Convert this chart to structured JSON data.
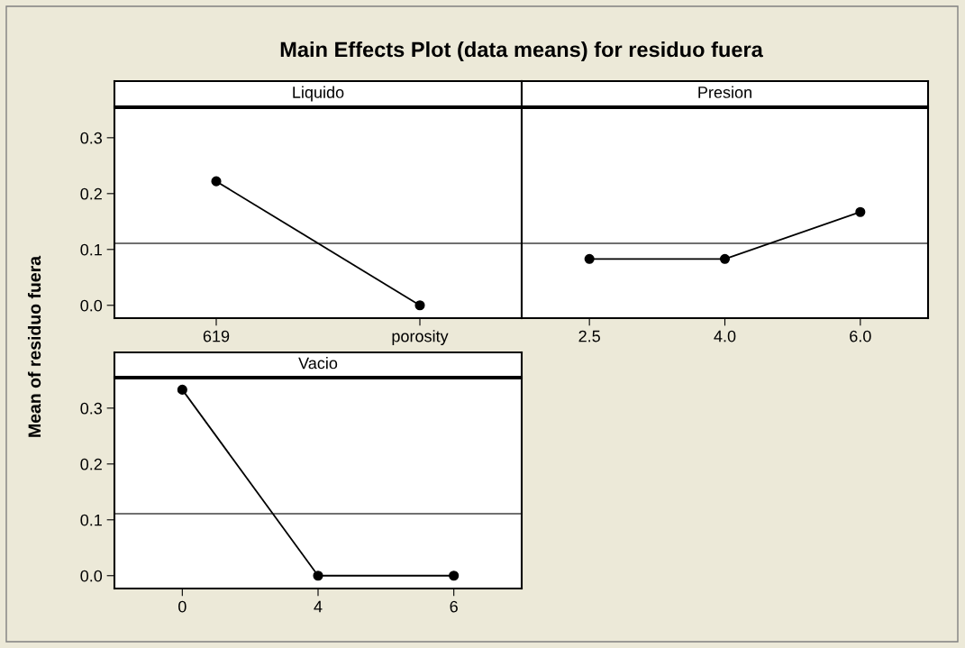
{
  "chart_data": [
    {
      "type": "line",
      "title": "Main Effects Plot (data means) for residuo fuera",
      "subtitle": "Liquido",
      "ylabel": "Mean of residuo fuera",
      "categories": [
        "619",
        "porosity"
      ],
      "series": [
        {
          "color": "#000000",
          "values": [
            0.222,
            0.0
          ]
        }
      ],
      "ylim": [
        -0.023,
        0.353
      ],
      "yticks": [
        {
          "value": 0.0,
          "label": "0.0"
        },
        {
          "value": 0.1,
          "label": "0.1"
        },
        {
          "value": 0.2,
          "label": "0.2"
        },
        {
          "value": 0.3,
          "label": "0.3"
        }
      ],
      "ref_lines": [
        {
          "axis": "y",
          "value": 0.111,
          "color": "#404040"
        }
      ],
      "marker": "circle",
      "grid": false
    },
    {
      "type": "line",
      "subtitle": "Presion",
      "categories": [
        "2.5",
        "4.0",
        "6.0"
      ],
      "series": [
        {
          "color": "#000000",
          "values": [
            0.083,
            0.083,
            0.167
          ]
        }
      ],
      "ylim": [
        -0.023,
        0.353
      ],
      "ref_lines": [
        {
          "axis": "y",
          "value": 0.111,
          "color": "#404040"
        }
      ],
      "marker": "circle",
      "grid": false,
      "tick_labels": "x"
    },
    {
      "type": "line",
      "subtitle": "Vacio",
      "categories": [
        "0",
        "4",
        "6"
      ],
      "series": [
        {
          "color": "#000000",
          "values": [
            0.333,
            0.0,
            0.0
          ]
        }
      ],
      "ylim": [
        -0.023,
        0.353
      ],
      "yticks": [
        {
          "value": 0.0,
          "label": "0.0"
        },
        {
          "value": 0.1,
          "label": "0.1"
        },
        {
          "value": 0.2,
          "label": "0.2"
        },
        {
          "value": 0.3,
          "label": "0.3"
        }
      ],
      "ref_lines": [
        {
          "axis": "y",
          "value": 0.111,
          "color": "#404040"
        }
      ],
      "marker": "circle",
      "grid": false
    }
  ]
}
